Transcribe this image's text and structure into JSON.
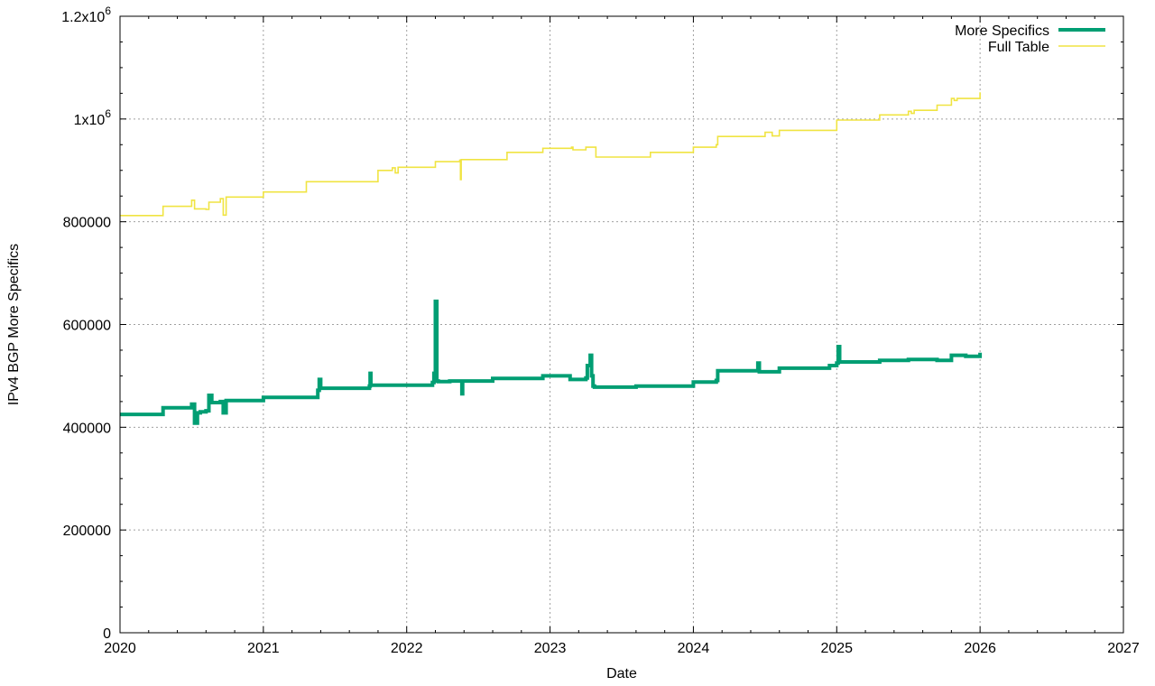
{
  "chart_data": {
    "type": "line",
    "xlabel": "Date",
    "ylabel": "IPv4 BGP More Specifics",
    "xlim": [
      2020,
      2027
    ],
    "ylim": [
      0,
      1200000
    ],
    "grid": true,
    "legend_position": "top-right",
    "x_ticks": [
      2020,
      2021,
      2022,
      2023,
      2024,
      2025,
      2026,
      2027
    ],
    "x_tick_labels": [
      "2020",
      "2021",
      "2022",
      "2023",
      "2024",
      "2025",
      "2026",
      "2027"
    ],
    "y_ticks": [
      0,
      200000,
      400000,
      600000,
      800000,
      1000000,
      1200000
    ],
    "y_tick_labels": [
      {
        "base": "0",
        "sup": ""
      },
      {
        "base": "200000",
        "sup": ""
      },
      {
        "base": "400000",
        "sup": ""
      },
      {
        "base": "600000",
        "sup": ""
      },
      {
        "base": "800000",
        "sup": ""
      },
      {
        "base": "1x10",
        "sup": "6"
      },
      {
        "base": "1.2x10",
        "sup": "6"
      }
    ],
    "series": [
      {
        "name": "More Specifics",
        "color": "#009e73",
        "x": [
          2020.0,
          2020.3,
          2020.5,
          2020.52,
          2020.54,
          2020.56,
          2020.6,
          2020.62,
          2020.64,
          2020.7,
          2020.72,
          2020.74,
          2021.0,
          2021.38,
          2021.39,
          2021.4,
          2021.74,
          2021.745,
          2021.75,
          2022.0,
          2022.18,
          2022.19,
          2022.2,
          2022.21,
          2022.22,
          2022.3,
          2022.38,
          2022.385,
          2022.39,
          2022.6,
          2022.95,
          2023.13,
          2023.14,
          2023.25,
          2023.26,
          2023.28,
          2023.29,
          2023.3,
          2023.31,
          2023.6,
          2024.0,
          2024.16,
          2024.17,
          2024.4,
          2024.45,
          2024.46,
          2024.6,
          2024.95,
          2025.0,
          2025.01,
          2025.02,
          2025.03,
          2025.3,
          2025.5,
          2025.7,
          2025.8,
          2025.9,
          2026.0
        ],
        "y": [
          425000,
          438000,
          445000,
          408000,
          428000,
          430000,
          432000,
          462000,
          448000,
          450000,
          428000,
          452000,
          458000,
          472000,
          493000,
          476000,
          480000,
          505000,
          482000,
          482000,
          487000,
          505000,
          645000,
          490000,
          489000,
          490000,
          490000,
          465000,
          490000,
          495000,
          500000,
          500000,
          493000,
          496000,
          520000,
          540000,
          500000,
          480000,
          478000,
          480000,
          488000,
          491000,
          510000,
          510000,
          525000,
          508000,
          515000,
          520000,
          525000,
          557000,
          527000,
          527000,
          530000,
          532000,
          530000,
          540000,
          538000,
          545000
        ]
      },
      {
        "name": "Full Table",
        "color": "#f0e442",
        "x": [
          2020.0,
          2020.3,
          2020.5,
          2020.52,
          2020.6,
          2020.62,
          2020.7,
          2020.72,
          2020.74,
          2021.0,
          2021.3,
          2021.8,
          2021.9,
          2021.92,
          2021.94,
          2022.2,
          2022.37,
          2022.375,
          2022.38,
          2022.7,
          2022.95,
          2023.15,
          2023.16,
          2023.25,
          2023.3,
          2023.32,
          2023.7,
          2024.0,
          2024.16,
          2024.17,
          2024.5,
          2024.55,
          2024.6,
          2025.0,
          2025.3,
          2025.5,
          2025.52,
          2025.54,
          2025.7,
          2025.8,
          2025.82,
          2025.84,
          2026.0
        ],
        "y": [
          812000,
          830000,
          842000,
          825000,
          824000,
          838000,
          845000,
          813000,
          848000,
          858000,
          878000,
          900000,
          905000,
          895000,
          906000,
          917000,
          920000,
          882000,
          921000,
          935000,
          943000,
          945000,
          940000,
          945000,
          945000,
          926000,
          935000,
          945000,
          950000,
          966000,
          974000,
          967000,
          978000,
          998000,
          1008000,
          1015000,
          1011000,
          1017000,
          1027000,
          1040000,
          1036000,
          1040000,
          1052000
        ]
      }
    ]
  }
}
